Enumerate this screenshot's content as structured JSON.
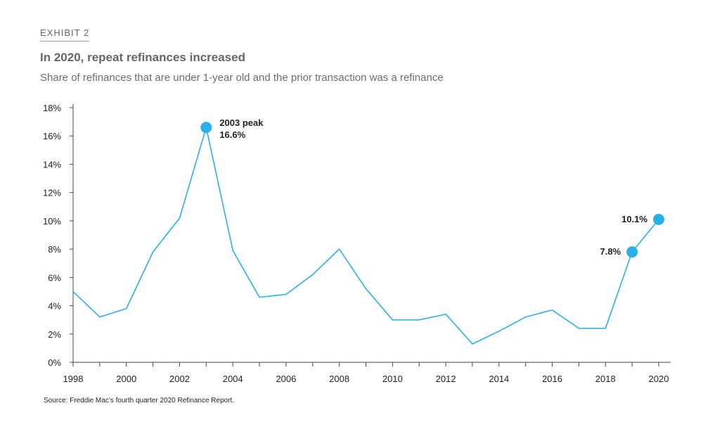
{
  "exhibit_label": "EXHIBIT 2",
  "title": "In 2020, repeat refinances increased",
  "subtitle": "Share of refinances that are under 1-year old and the prior transaction was a refinance",
  "source": "Source: Freddie Mac’s fourth quarter 2020 Refinance Report.",
  "colors": {
    "line": "#29b0e8",
    "axis": "#444444",
    "text": "#222222"
  },
  "chart_data": {
    "type": "line",
    "title": "In 2020, repeat refinances increased",
    "subtitle": "Share of refinances that are under 1-year old and the prior transaction was a refinance",
    "xlabel": "",
    "ylabel": "",
    "grid": false,
    "xlim": [
      1998,
      2020
    ],
    "ylim": [
      0,
      18
    ],
    "x_ticks": [
      "1998",
      "2000",
      "2002",
      "2004",
      "2006",
      "2008",
      "2010",
      "2012",
      "2014",
      "2016",
      "2018",
      "2020"
    ],
    "y_ticks": [
      "0%",
      "2%",
      "4%",
      "6%",
      "8%",
      "10%",
      "12%",
      "14%",
      "16%",
      "18%"
    ],
    "x": [
      1998,
      1999,
      2000,
      2001,
      2002,
      2003,
      2004,
      2005,
      2006,
      2007,
      2008,
      2009,
      2010,
      2011,
      2012,
      2013,
      2014,
      2015,
      2016,
      2017,
      2018,
      2019,
      2020
    ],
    "series": [
      {
        "values": [
          5.0,
          3.2,
          3.8,
          7.8,
          10.2,
          16.6,
          7.9,
          4.6,
          4.8,
          6.2,
          8.0,
          5.2,
          3.0,
          3.0,
          3.4,
          1.3,
          2.2,
          3.2,
          3.7,
          2.4,
          2.4,
          7.8,
          10.1
        ]
      }
    ],
    "highlighted_points": [
      {
        "x": 2003,
        "y": 16.6,
        "label_line1": "2003 peak",
        "label_line2": "16.6%",
        "position": "right"
      },
      {
        "x": 2019,
        "y": 7.8,
        "label_line1": "7.8%",
        "position": "left"
      },
      {
        "x": 2020,
        "y": 10.1,
        "label_line1": "10.1%",
        "position": "left"
      }
    ]
  }
}
